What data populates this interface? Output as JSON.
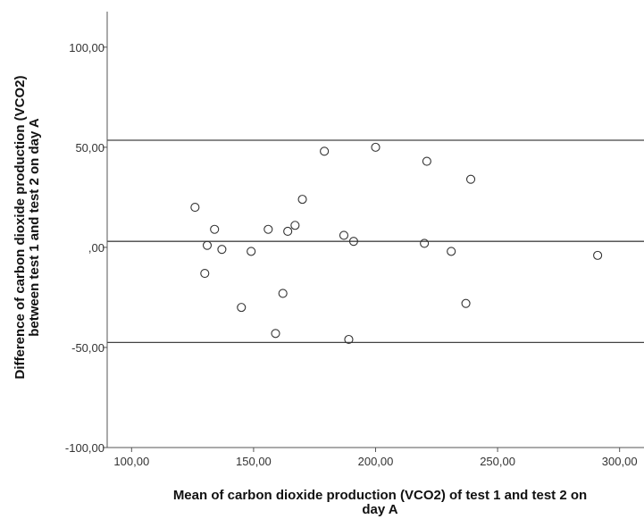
{
  "chart_data": {
    "type": "scatter",
    "title": "",
    "xlabel": [
      "Mean of carbon dioxide production (VCO2) of test 1 and test 2 on",
      "day A"
    ],
    "ylabel": [
      "Difference of carbon dioxide production (VCO2)",
      "between test 1 and test 2 on day A"
    ],
    "xlim": [
      90,
      310
    ],
    "ylim": [
      -100,
      120
    ],
    "x_ticks": [
      100,
      150,
      200,
      250,
      300
    ],
    "x_tick_labels": [
      "100,00",
      "150,00",
      "200,00",
      "250,00",
      "300,00"
    ],
    "y_ticks": [
      100,
      50,
      0,
      -50,
      -100
    ],
    "y_tick_labels": [
      "100,00",
      "50,00",
      ",00",
      "-50,00",
      "-100,00"
    ],
    "reference_lines": [
      53.5,
      3,
      -47.5
    ],
    "grid": false,
    "legend": "none",
    "colors": {
      "axis": "#555555",
      "marker": "#333333",
      "line": "#444444"
    },
    "points": [
      {
        "x": 126,
        "y": 20
      },
      {
        "x": 130,
        "y": -13
      },
      {
        "x": 131,
        "y": 1
      },
      {
        "x": 134,
        "y": 9
      },
      {
        "x": 137,
        "y": -1
      },
      {
        "x": 145,
        "y": -30
      },
      {
        "x": 149,
        "y": -2
      },
      {
        "x": 156,
        "y": 9
      },
      {
        "x": 159,
        "y": -43
      },
      {
        "x": 162,
        "y": -23
      },
      {
        "x": 164,
        "y": 8
      },
      {
        "x": 167,
        "y": 11
      },
      {
        "x": 170,
        "y": 24
      },
      {
        "x": 179,
        "y": 48
      },
      {
        "x": 187,
        "y": 6
      },
      {
        "x": 189,
        "y": -46
      },
      {
        "x": 191,
        "y": 3
      },
      {
        "x": 200,
        "y": 50
      },
      {
        "x": 220,
        "y": 2
      },
      {
        "x": 221,
        "y": 43
      },
      {
        "x": 231,
        "y": -2
      },
      {
        "x": 237,
        "y": -28
      },
      {
        "x": 239,
        "y": 34
      },
      {
        "x": 291,
        "y": -4
      }
    ]
  }
}
